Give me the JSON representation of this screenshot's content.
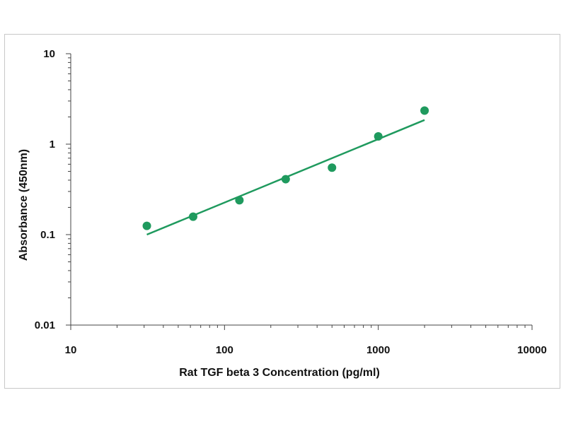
{
  "chart_data": {
    "type": "scatter",
    "xlabel": "Rat TGF beta 3 Concentration (pg/ml)",
    "ylabel": "Absorbance (450nm)",
    "xscale": "log",
    "yscale": "log",
    "xlim": [
      10,
      10000
    ],
    "ylim": [
      0.01,
      10
    ],
    "x_ticks": [
      10,
      100,
      1000,
      10000
    ],
    "x_tick_labels": [
      "10",
      "100",
      "1000",
      "10000"
    ],
    "y_ticks": [
      0.01,
      0.1,
      1,
      10
    ],
    "y_tick_labels": [
      "0.01",
      "0.1",
      "1",
      "10"
    ],
    "grid": false,
    "legend": "none",
    "series": [
      {
        "x": [
          31.25,
          62.5,
          125,
          250,
          500,
          1000,
          2000
        ],
        "y": [
          0.125,
          0.158,
          0.24,
          0.41,
          0.55,
          1.22,
          2.35
        ],
        "color": "#1f9a5e"
      }
    ],
    "trendline": {
      "x": [
        31.25,
        2000
      ],
      "y": [
        0.1,
        1.85
      ],
      "color": "#1f9a5e"
    }
  }
}
